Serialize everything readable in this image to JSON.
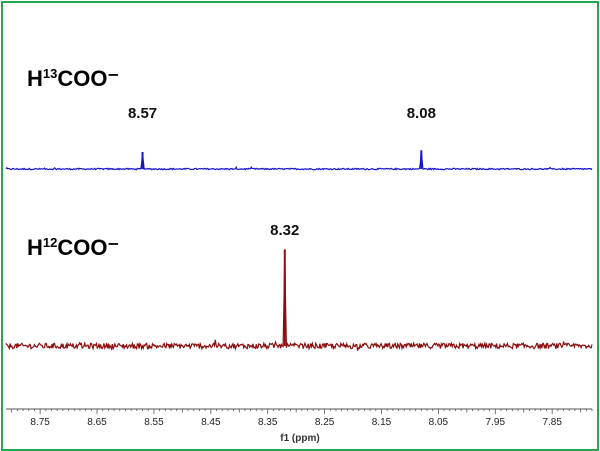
{
  "chart_data": {
    "type": "line",
    "xlabel": "f1 (ppm)",
    "x_reversed": true,
    "xlim": [
      8.81,
      7.78
    ],
    "x_ticks": [
      "8.75",
      "8.65",
      "8.55",
      "8.45",
      "8.35",
      "8.25",
      "8.15",
      "8.05",
      "7.95",
      "7.85"
    ],
    "grid": false,
    "colors": {
      "frame": "#22a84a",
      "h13": "#1515cc",
      "h12": "#8b0d0d",
      "axis": "#555555"
    },
    "series": [
      {
        "name_prefix": "H",
        "name_sup": "13",
        "name_suffix": "COO⁻",
        "color": "#1515cc",
        "noise_amplitude": 0.04,
        "peaks": [
          {
            "x": 8.57,
            "height": 1.0,
            "label": "8.57"
          },
          {
            "x": 8.08,
            "height": 1.1,
            "label": "8.08"
          }
        ]
      },
      {
        "name_prefix": "H",
        "name_sup": "12",
        "name_suffix": "COO⁻",
        "color": "#8b0d0d",
        "noise_amplitude": 0.12,
        "peaks": [
          {
            "x": 8.32,
            "height": 4.2,
            "label": "8.32"
          }
        ]
      }
    ]
  }
}
